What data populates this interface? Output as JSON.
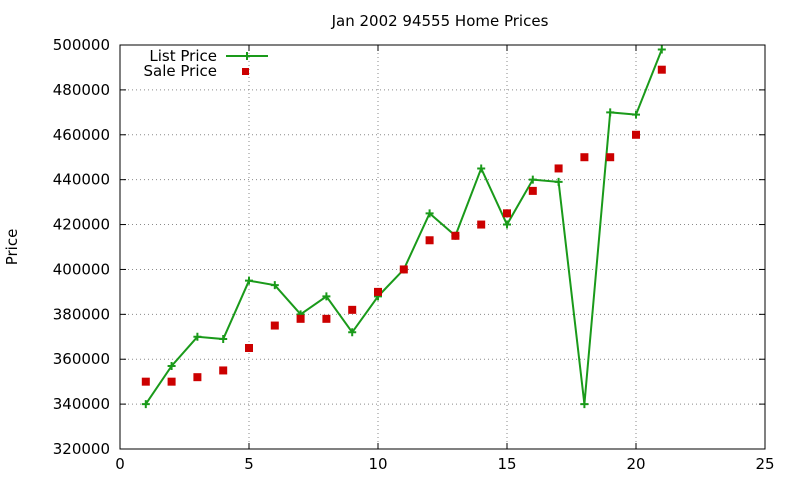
{
  "chart_data": {
    "type": "line",
    "title": "Jan 2002 94555 Home Prices",
    "xlabel": "",
    "ylabel": "Price",
    "xlim": [
      0,
      25
    ],
    "ylim": [
      320000,
      500000
    ],
    "xticks": [
      0,
      5,
      10,
      15,
      20,
      25
    ],
    "yticks": [
      320000,
      340000,
      360000,
      380000,
      400000,
      420000,
      440000,
      460000,
      480000,
      500000
    ],
    "xtick_labels": [
      "0",
      "5",
      "10",
      "15",
      "20",
      "25"
    ],
    "ytick_labels": [
      "320000",
      "340000",
      "360000",
      "380000",
      "400000",
      "420000",
      "440000",
      "460000",
      "480000",
      "500000"
    ],
    "grid": true,
    "legend_position": "top-left",
    "series": [
      {
        "name": "List Price",
        "style": "lines+crosses",
        "color": "#1a9a1a",
        "points": [
          [
            1,
            340000
          ],
          [
            2,
            357000
          ],
          [
            3,
            370000
          ],
          [
            4,
            369000
          ],
          [
            5,
            395000
          ],
          [
            6,
            393000
          ],
          [
            7,
            380000
          ],
          [
            8,
            388000
          ],
          [
            9,
            372000
          ],
          [
            10,
            388000
          ],
          [
            11,
            400000
          ],
          [
            12,
            425000
          ],
          [
            13,
            415000
          ],
          [
            14,
            445000
          ],
          [
            15,
            420000
          ],
          [
            16,
            440000
          ],
          [
            17,
            439000
          ],
          [
            18,
            340000
          ],
          [
            19,
            470000
          ],
          [
            20,
            469000
          ],
          [
            21,
            498000
          ]
        ]
      },
      {
        "name": "Sale Price",
        "style": "squares",
        "color": "#cc0000",
        "points": [
          [
            1,
            350000
          ],
          [
            2,
            350000
          ],
          [
            3,
            352000
          ],
          [
            4,
            355000
          ],
          [
            5,
            365000
          ],
          [
            6,
            375000
          ],
          [
            7,
            378000
          ],
          [
            8,
            378000
          ],
          [
            9,
            382000
          ],
          [
            10,
            390000
          ],
          [
            11,
            400000
          ],
          [
            12,
            413000
          ],
          [
            13,
            415000
          ],
          [
            14,
            420000
          ],
          [
            15,
            425000
          ],
          [
            16,
            435000
          ],
          [
            17,
            445000
          ],
          [
            18,
            450000
          ],
          [
            19,
            450000
          ],
          [
            20,
            460000
          ],
          [
            21,
            489000
          ]
        ]
      }
    ]
  }
}
